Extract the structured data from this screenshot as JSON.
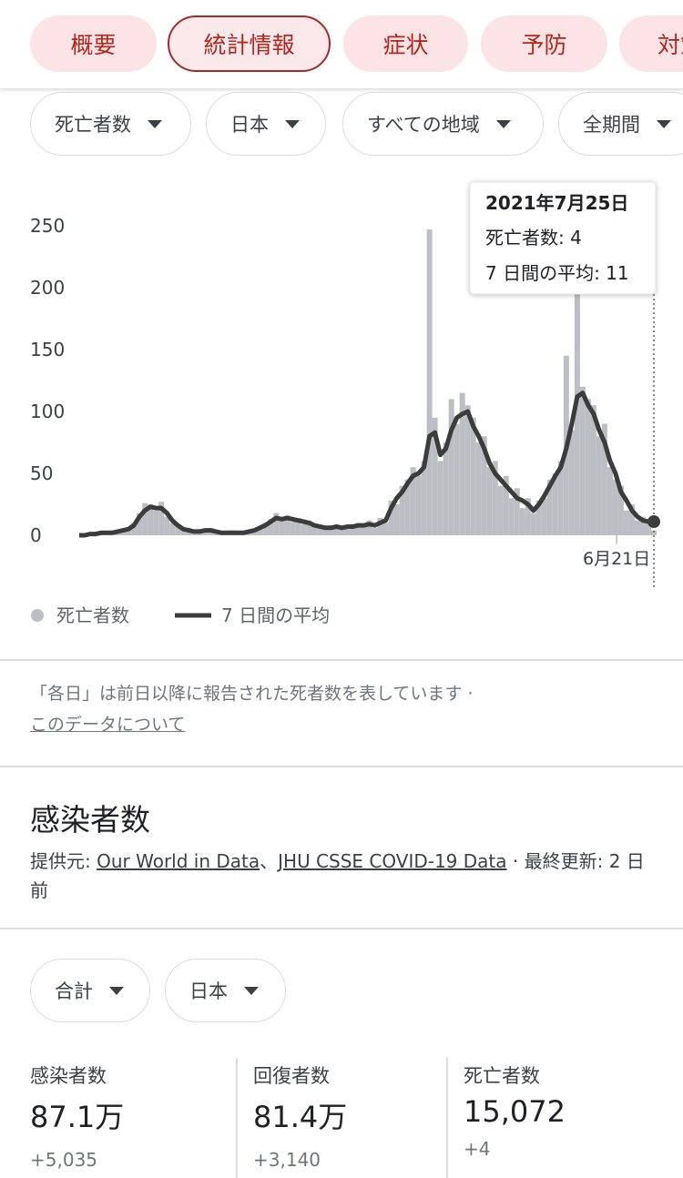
{
  "tabs": [
    "概要",
    "統計情報",
    "症状",
    "予防",
    "対策"
  ],
  "filters": [
    "死亡者数",
    "日本",
    "すべての地域",
    "全期間"
  ],
  "chart_data": {
    "type": "bar-line",
    "series": [
      {
        "name": "死亡者数",
        "color": "#bdbec3",
        "values": [
          0,
          1,
          0,
          2,
          3,
          1,
          4,
          2,
          5,
          6,
          10,
          18,
          26,
          25,
          20,
          27,
          15,
          10,
          7,
          4,
          6,
          2,
          5,
          3,
          6,
          2,
          3,
          1,
          4,
          2,
          3,
          2,
          5,
          7,
          10,
          13,
          18,
          12,
          16,
          11,
          14,
          9,
          12,
          7,
          9,
          5,
          8,
          6,
          7,
          5,
          9,
          10,
          7,
          12,
          6,
          14,
          10,
          28,
          25,
          40,
          45,
          55,
          48,
          60,
          247,
          95,
          60,
          75,
          110,
          90,
          115,
          105,
          95,
          75,
          80,
          55,
          60,
          40,
          48,
          30,
          38,
          22,
          30,
          18,
          28,
          30,
          45,
          50,
          60,
          145,
          85,
          210,
          120,
          110,
          105,
          80,
          90,
          55,
          45,
          40,
          20,
          25,
          12,
          15,
          10,
          4
        ]
      },
      {
        "name": "7 日間の平均",
        "color": "#3c3c3c",
        "values": [
          0,
          0,
          1,
          1,
          2,
          2,
          2,
          3,
          4,
          5,
          8,
          15,
          20,
          23,
          22,
          22,
          18,
          12,
          8,
          5,
          4,
          3,
          3,
          4,
          4,
          3,
          2,
          2,
          2,
          2,
          2,
          3,
          4,
          6,
          8,
          11,
          14,
          13,
          14,
          13,
          12,
          11,
          10,
          8,
          7,
          6,
          6,
          7,
          6,
          7,
          7,
          8,
          8,
          9,
          8,
          10,
          12,
          22,
          30,
          35,
          42,
          48,
          50,
          55,
          80,
          83,
          65,
          70,
          85,
          95,
          98,
          100,
          88,
          80,
          70,
          58,
          50,
          45,
          40,
          35,
          30,
          28,
          25,
          20,
          25,
          32,
          40,
          48,
          55,
          70,
          90,
          112,
          115,
          105,
          98,
          85,
          75,
          60,
          50,
          35,
          28,
          20,
          15,
          12,
          11,
          11
        ]
      }
    ],
    "ylim": [
      0,
      250
    ],
    "yticks": [
      0,
      50,
      100,
      150,
      200,
      250
    ],
    "xlim": [
      0,
      105
    ],
    "xticks": [
      {
        "value": 98.2,
        "label": "6月21日"
      }
    ],
    "grid": false,
    "tooltip": {
      "title": "2021年7月25日",
      "lines": [
        "死亡者数: 4",
        "7 日間の平均: 11"
      ]
    }
  },
  "note": {
    "text": "「各日」は前日以降に報告された死者数を表しています ·",
    "link": "このデータについて"
  },
  "section": {
    "title": "感染者数",
    "source": [
      "提供元: ",
      "Our World in Data",
      "、",
      "JHU CSSE COVID-19 Data",
      " · 最終更新: 2 日前"
    ]
  },
  "filters2": [
    "合計",
    "日本"
  ],
  "stats": [
    {
      "label": "感染者数",
      "value": "87.1万",
      "change": "+5,035"
    },
    {
      "label": "回復者数",
      "value": "81.4万",
      "change": "+3,140"
    },
    {
      "label": "死亡者数",
      "value": "15,072",
      "change": "+4"
    }
  ]
}
